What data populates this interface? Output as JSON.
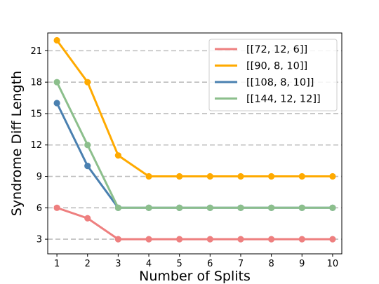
{
  "chart_data": {
    "type": "line",
    "title": "",
    "xlabel": "Number of Splits",
    "ylabel": "Syndrome Diff Length",
    "x": [
      1,
      2,
      3,
      4,
      5,
      6,
      7,
      8,
      9,
      10
    ],
    "xticks": [
      "1",
      "2",
      "3",
      "4",
      "5",
      "6",
      "7",
      "8",
      "9",
      "10"
    ],
    "yticks": [
      "3",
      "6",
      "9",
      "12",
      "15",
      "18",
      "21"
    ],
    "xlim": [
      0.7,
      10.3
    ],
    "ylim": [
      1.6,
      22.7
    ],
    "grid": "horizontal dashed",
    "legend_position": "top-right",
    "series": [
      {
        "name": "[[72, 12, 6]]",
        "color": "#EE7F7F",
        "values": [
          6,
          5,
          3,
          3,
          3,
          3,
          3,
          3,
          3,
          3
        ]
      },
      {
        "name": "[[90, 8, 10]]",
        "color": "#FFAA00",
        "values": [
          22,
          18,
          11,
          9,
          9,
          9,
          9,
          9,
          9,
          9
        ]
      },
      {
        "name": "[[108, 8, 10]]",
        "color": "#4A80B0",
        "values": [
          16,
          10,
          6,
          6,
          6,
          6,
          6,
          6,
          6,
          6
        ]
      },
      {
        "name": "[[144, 12, 12]]",
        "color": "#8CBF8C",
        "values": [
          18,
          12,
          6,
          6,
          6,
          6,
          6,
          6,
          6,
          6
        ]
      }
    ]
  }
}
